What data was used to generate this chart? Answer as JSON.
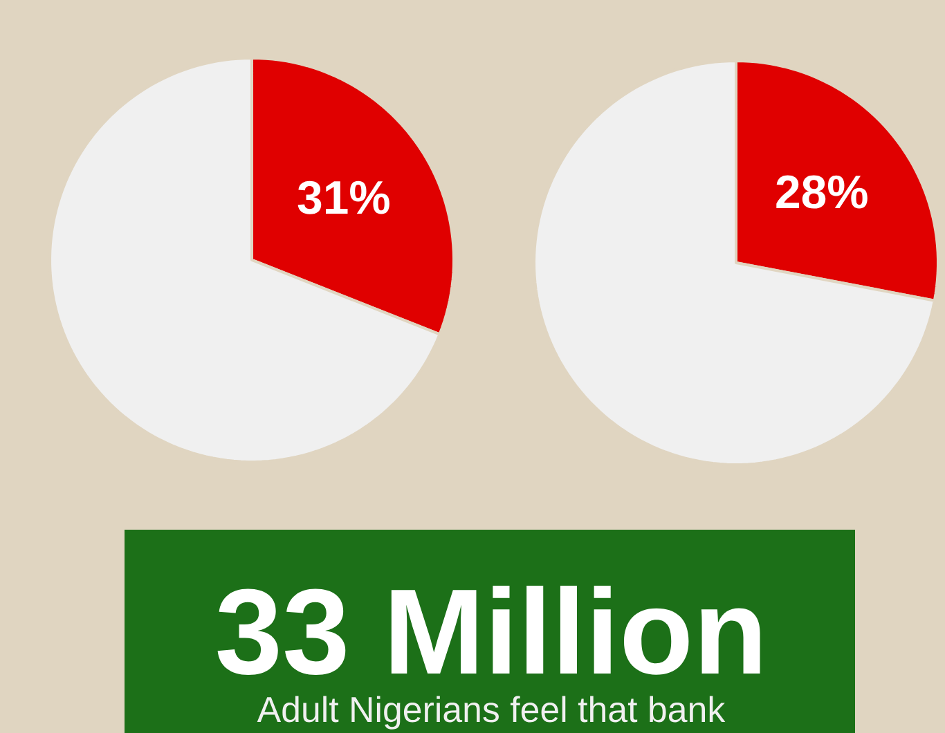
{
  "chart_data": [
    {
      "type": "pie",
      "categories": [
        null,
        null
      ],
      "values": [
        31,
        69
      ],
      "colors": [
        "#e00000",
        "#f0f0f0"
      ],
      "value_labels": [
        "31%",
        null
      ]
    },
    {
      "type": "pie",
      "categories": [
        null,
        null
      ],
      "values": [
        28,
        72
      ],
      "colors": [
        "#e00000",
        "#f0f0f0"
      ],
      "value_labels": [
        "28%",
        null
      ]
    },
    {
      "type": "other",
      "title": "33 Million",
      "subtitle": "Adult Nigerians feel that bank"
    }
  ]
}
